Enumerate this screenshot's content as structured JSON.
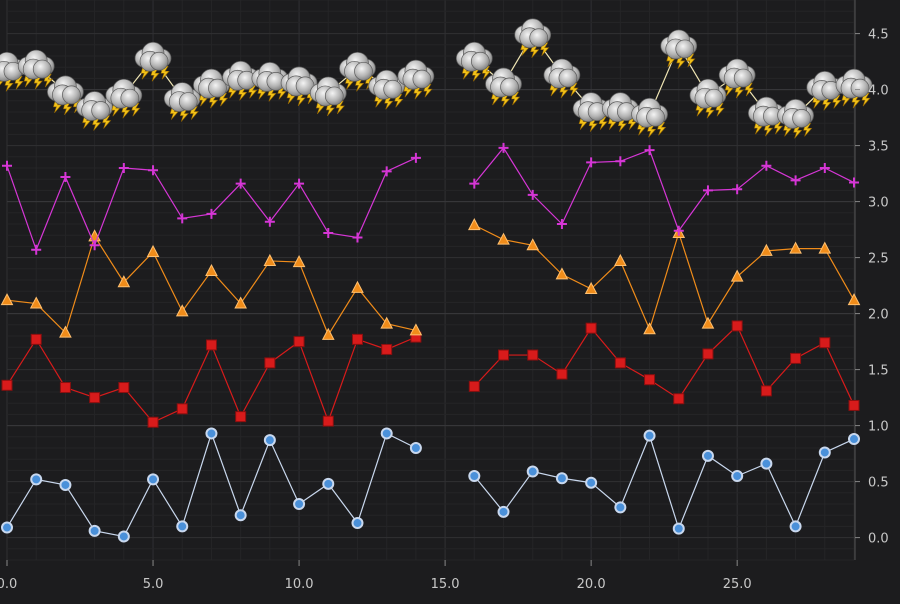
{
  "chart_data": {
    "type": "line",
    "title": "",
    "xlabel": "",
    "ylabel": "",
    "xlim": [
      0,
      29
    ],
    "ylim": [
      -0.2,
      4.8
    ],
    "grid": true,
    "x_ticks": [
      "0.0",
      "5.0",
      "10.0",
      "15.0",
      "20.0",
      "25.0"
    ],
    "y_ticks": [
      "0.0",
      "0.5",
      "1.0",
      "1.5",
      "2.0",
      "2.5",
      "3.0",
      "3.5",
      "4.0",
      "4.5"
    ],
    "colors": {
      "background": "#1c1c1e",
      "grid": "#2c2c2e",
      "axis_text": "#c8c8c8",
      "circle_series": "#4a90d9",
      "square_series": "#d81b1b",
      "triangle_series": "#f08c1a",
      "cross_series": "#d636d6",
      "cloud_series": "#f0e6b4"
    },
    "series": [
      {
        "marker": "circle",
        "x": [
          0,
          1,
          2,
          3,
          4,
          5,
          6,
          7,
          8,
          9,
          10,
          11,
          12,
          13,
          14,
          16,
          17,
          18,
          19,
          20,
          21,
          22,
          23,
          24,
          25,
          26,
          27,
          28,
          29
        ],
        "y": [
          0.09,
          0.52,
          0.47,
          0.06,
          0.01,
          0.52,
          0.1,
          0.93,
          0.2,
          0.87,
          0.3,
          0.48,
          0.13,
          0.93,
          0.8,
          0.55,
          0.23,
          0.59,
          0.53,
          0.49,
          0.27,
          0.91,
          0.08,
          0.73,
          0.55,
          0.66,
          0.1,
          0.76,
          0.88
        ]
      },
      {
        "marker": "square",
        "x": [
          0,
          1,
          2,
          3,
          4,
          5,
          6,
          7,
          8,
          9,
          10,
          11,
          12,
          13,
          14,
          16,
          17,
          18,
          19,
          20,
          21,
          22,
          23,
          24,
          25,
          26,
          27,
          28,
          29
        ],
        "y": [
          1.36,
          1.77,
          1.34,
          1.25,
          1.34,
          1.03,
          1.15,
          1.72,
          1.08,
          1.56,
          1.75,
          1.04,
          1.77,
          1.68,
          1.79,
          1.35,
          1.63,
          1.63,
          1.46,
          1.87,
          1.56,
          1.41,
          1.24,
          1.64,
          1.89,
          1.31,
          1.6,
          1.74,
          1.18
        ]
      },
      {
        "marker": "triangle",
        "x": [
          0,
          1,
          2,
          3,
          4,
          5,
          6,
          7,
          8,
          9,
          10,
          11,
          12,
          13,
          14,
          16,
          17,
          18,
          19,
          20,
          21,
          22,
          23,
          24,
          25,
          26,
          27,
          28,
          29
        ],
        "y": [
          2.12,
          2.09,
          1.83,
          2.69,
          2.28,
          2.55,
          2.02,
          2.38,
          2.09,
          2.47,
          2.46,
          1.81,
          2.23,
          1.91,
          1.85,
          2.79,
          2.66,
          2.61,
          2.35,
          2.22,
          2.47,
          1.86,
          2.72,
          1.91,
          2.33,
          2.56,
          2.58,
          2.58,
          2.12
        ]
      },
      {
        "marker": "cross",
        "x": [
          0,
          1,
          2,
          3,
          4,
          5,
          6,
          7,
          8,
          9,
          10,
          11,
          12,
          13,
          14,
          16,
          17,
          18,
          19,
          20,
          21,
          22,
          23,
          24,
          25,
          26,
          27,
          28,
          29
        ],
        "y": [
          3.32,
          2.57,
          3.22,
          2.61,
          3.3,
          3.28,
          2.85,
          2.89,
          3.16,
          2.82,
          3.16,
          2.72,
          2.68,
          3.27,
          3.39,
          3.16,
          3.48,
          3.06,
          2.8,
          3.35,
          3.36,
          3.46,
          2.74,
          3.1,
          3.11,
          3.32,
          3.19,
          3.3,
          3.17
        ]
      },
      {
        "marker": "thunder-cloud",
        "x": [
          0,
          1,
          2,
          3,
          4,
          5,
          6,
          7,
          8,
          9,
          10,
          11,
          12,
          13,
          14,
          16,
          17,
          18,
          19,
          20,
          21,
          22,
          23,
          24,
          25,
          26,
          27,
          28,
          29
        ],
        "y": [
          4.19,
          4.21,
          3.98,
          3.84,
          3.95,
          4.28,
          3.92,
          4.04,
          4.11,
          4.1,
          4.06,
          3.97,
          4.19,
          4.03,
          4.12,
          4.28,
          4.05,
          4.49,
          4.13,
          3.83,
          3.83,
          3.78,
          4.39,
          3.95,
          4.13,
          3.79,
          3.77,
          4.02,
          4.04
        ]
      }
    ]
  }
}
